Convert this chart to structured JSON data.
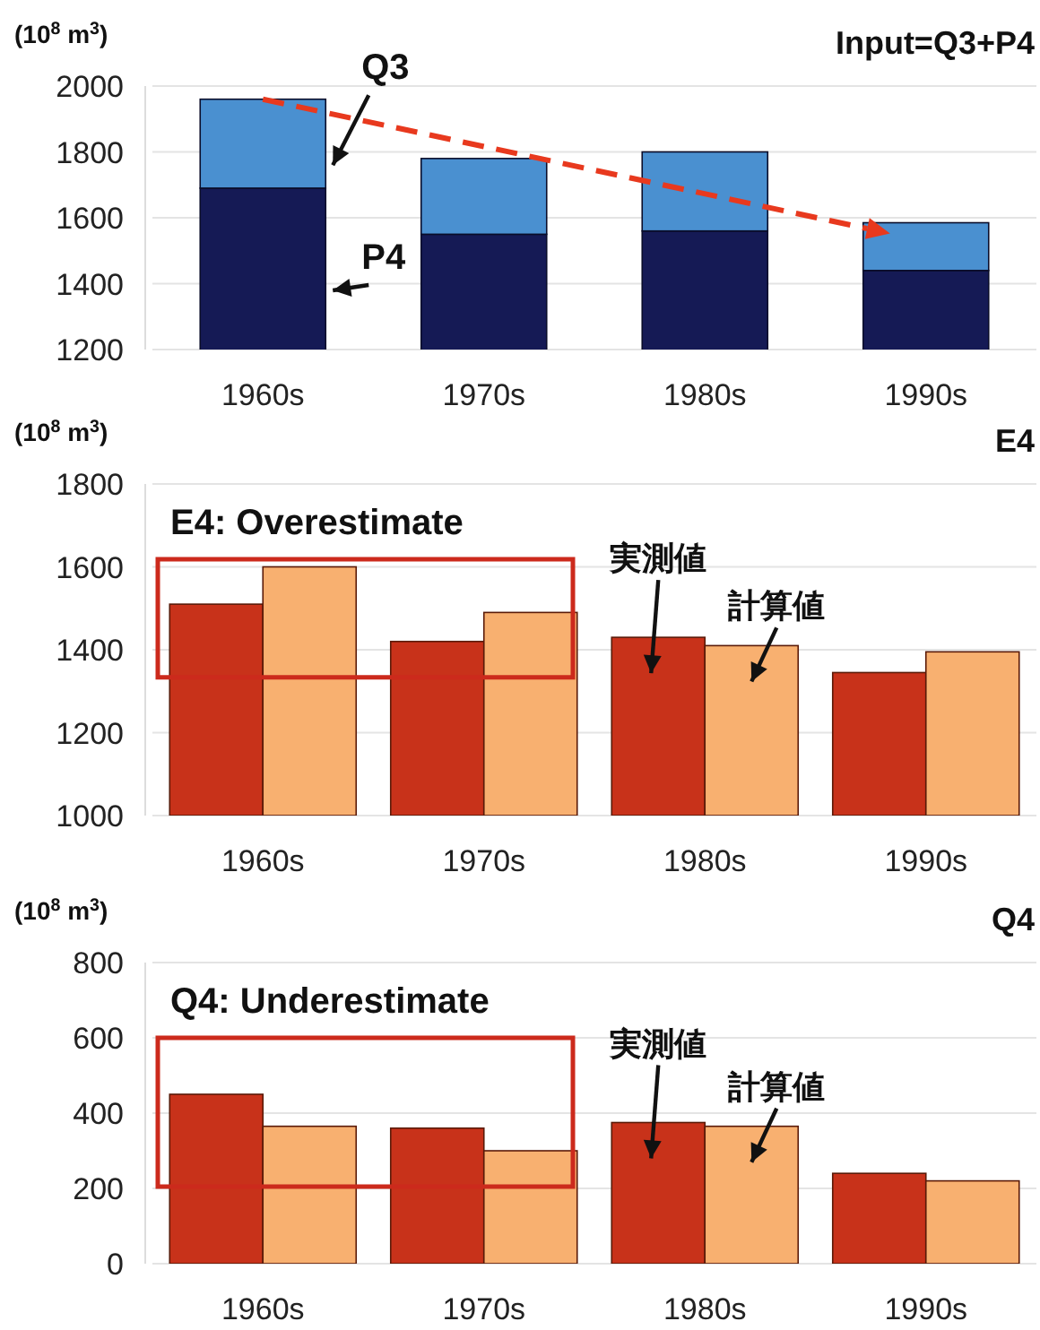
{
  "chart_data": [
    {
      "type": "bar",
      "title": "Input=Q3+P4",
      "ylabel": "(10$^{8}$ m$^{3}$)",
      "categories": [
        "1960s",
        "1970s",
        "1980s",
        "1990s"
      ],
      "stacked": true,
      "ylim": [
        1200,
        2000
      ],
      "yticks": [
        1200,
        1400,
        1600,
        1800,
        2000
      ],
      "grid": "y",
      "series": [
        {
          "name": "P4",
          "color": "#151a55",
          "values": [
            1690,
            1550,
            1560,
            1440
          ]
        },
        {
          "name": "Q3",
          "color": "#4a90d0",
          "base": [
            1690,
            1550,
            1560,
            1440
          ],
          "values": [
            270,
            230,
            240,
            145
          ]
        }
      ]
    },
    {
      "type": "bar",
      "title": "E4",
      "ylabel": "(10$^{8}$ m$^{3}$)",
      "categories": [
        "1960s",
        "1970s",
        "1980s",
        "1990s"
      ],
      "ylim": [
        1000,
        1800
      ],
      "yticks": [
        1000,
        1200,
        1400,
        1600,
        1800
      ],
      "grid": "y",
      "annotations": [
        "E4: Overestimate"
      ],
      "series": [
        {
          "name": "実測値",
          "color": "#c8321a",
          "values": [
            1510,
            1420,
            1430,
            1345
          ]
        },
        {
          "name": "計算値",
          "color": "#f8b070",
          "values": [
            1600,
            1490,
            1410,
            1395
          ]
        }
      ]
    },
    {
      "type": "bar",
      "title": "Q4",
      "ylabel": "(10$^{8}$ m$^{3}$)",
      "categories": [
        "1960s",
        "1970s",
        "1980s",
        "1990s"
      ],
      "ylim": [
        0,
        800
      ],
      "yticks": [
        0,
        200,
        400,
        600,
        800
      ],
      "grid": "y",
      "annotations": [
        "Q4: Underestimate"
      ],
      "series": [
        {
          "name": "実測値",
          "color": "#c8321a",
          "values": [
            450,
            360,
            375,
            240
          ]
        },
        {
          "name": "計算値",
          "color": "#f8b070",
          "values": [
            365,
            300,
            365,
            220
          ]
        }
      ]
    }
  ]
}
